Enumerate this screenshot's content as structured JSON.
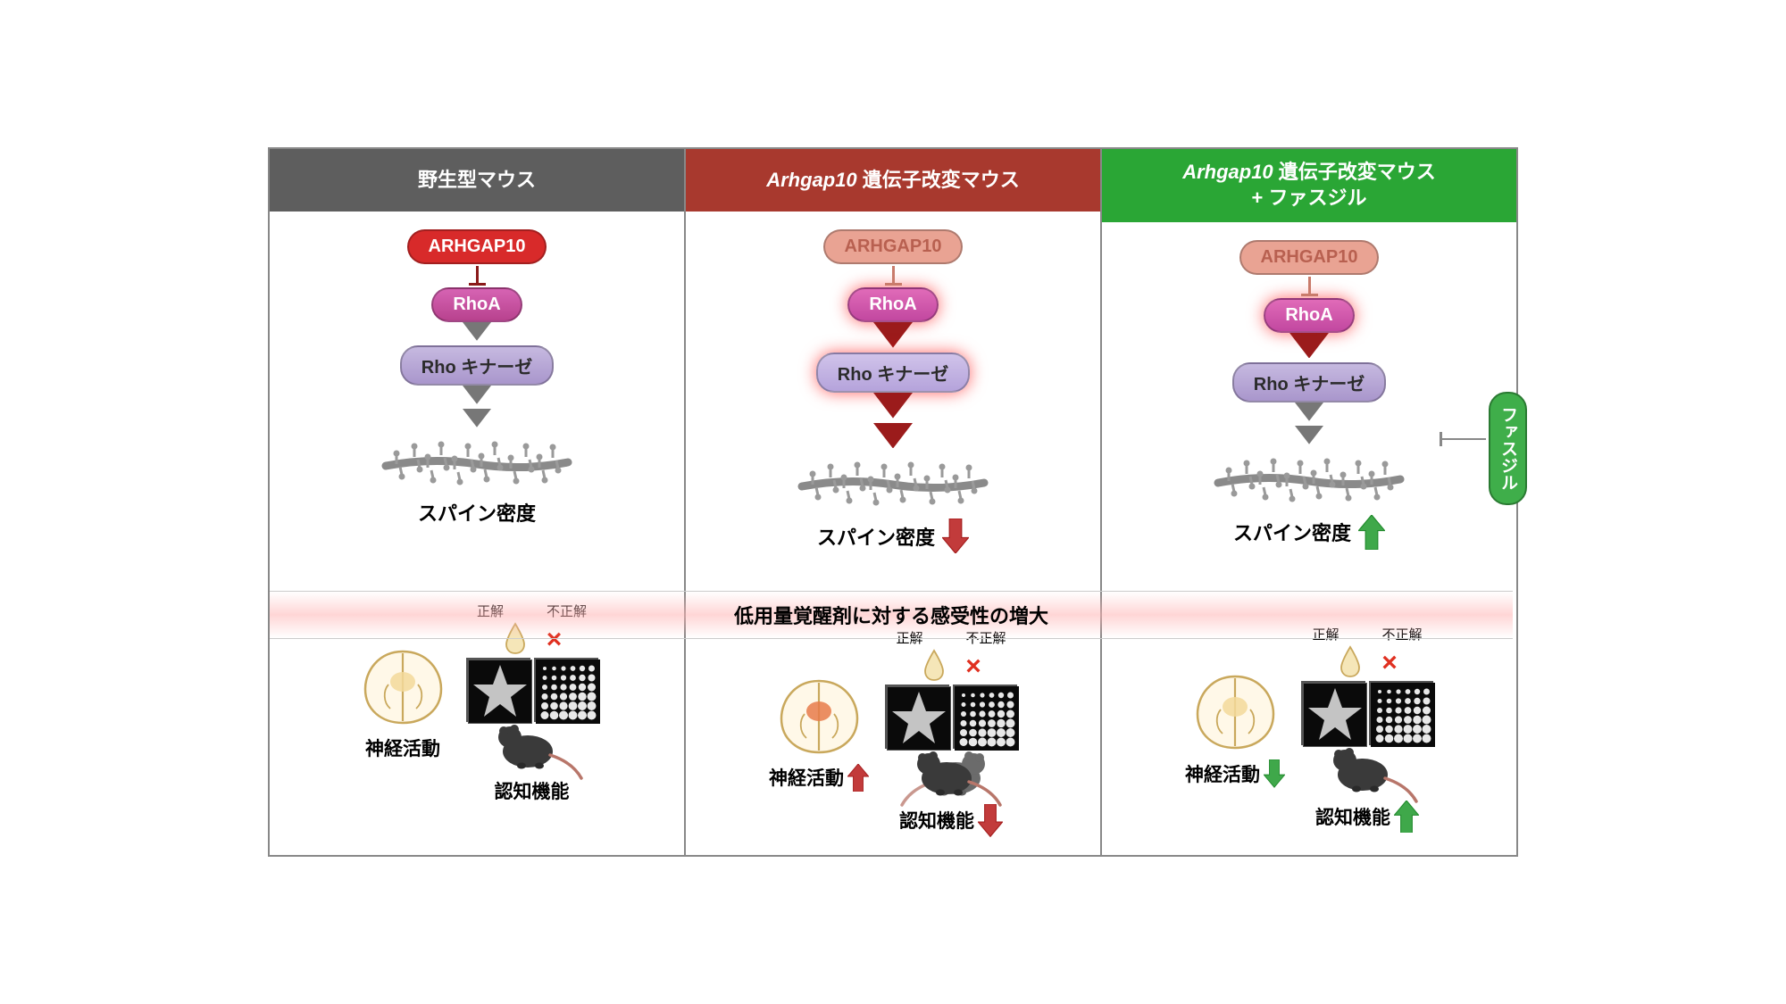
{
  "columns": [
    {
      "title_plain": "野生型マウス",
      "title_italic": "",
      "title_suffix": "",
      "header_bg": "#5e5e5e",
      "arhgap": {
        "text": "ARHGAP10",
        "bg": "#d82a2a",
        "color": "#ffffff",
        "faded": false
      },
      "inhibit_color": "#8a1a1a",
      "rhoa": {
        "text": "RhoA",
        "bg": "linear-gradient(#d663b3,#b8428e)",
        "color": "#ffffff",
        "glow": false
      },
      "arrow1": {
        "color": "#777777",
        "size": 16
      },
      "rhokinase": {
        "text": "Rho キナーゼ",
        "bg": "linear-gradient(#c6b9e0,#a996cc)",
        "color": "#2b2b2b",
        "glow": false
      },
      "arrow2": {
        "color": "#777777",
        "size": 16
      },
      "arrow3": {
        "color": "#777777",
        "size": 16
      },
      "spine_label": "スパイン密度",
      "spine_trend": null,
      "neural_label": "神経活動",
      "neural_trend": null,
      "cog_label": "認知機能",
      "cog_trend": null,
      "choice_correct": "正解",
      "choice_incorrect": "不正解",
      "brain_highlight": "#f3d99a"
    },
    {
      "title_plain": "",
      "title_italic": "Arhgap10",
      "title_suffix": " 遺伝子改変マウス",
      "header_bg": "#a8392e",
      "arhgap": {
        "text": "ARHGAP10",
        "bg": "#e9a393",
        "color": "#b86050",
        "faded": true
      },
      "inhibit_color": "#c97b6b",
      "rhoa": {
        "text": "RhoA",
        "bg": "linear-gradient(#e06bb8,#c248a0)",
        "color": "#ffffff",
        "glow": true
      },
      "arrow1": {
        "color": "#9b1b1b",
        "size": 22
      },
      "rhokinase": {
        "text": "Rho キナーゼ",
        "bg": "linear-gradient(#d0c3ea,#b5a3db)",
        "color": "#2b2b2b",
        "glow": true
      },
      "arrow2": {
        "color": "#9b1b1b",
        "size": 22
      },
      "arrow3": {
        "color": "#9b1b1b",
        "size": 22
      },
      "spine_label": "スパイン密度",
      "spine_trend": {
        "dir": "down",
        "color": "#c23b3b"
      },
      "neural_label": "神経活動",
      "neural_trend": {
        "dir": "up",
        "color": "#c23b3b"
      },
      "cog_label": "認知機能",
      "cog_trend": {
        "dir": "down",
        "color": "#c23b3b"
      },
      "choice_correct": "正解",
      "choice_incorrect": "不正解",
      "brain_highlight": "#e87b4a"
    },
    {
      "title_plain": "",
      "title_italic": "Arhgap10",
      "title_suffix": " 遺伝子改変マウス\n+ ファスジル",
      "header_bg": "#2aa635",
      "arhgap": {
        "text": "ARHGAP10",
        "bg": "#e9a393",
        "color": "#b86050",
        "faded": true
      },
      "inhibit_color": "#c97b6b",
      "rhoa": {
        "text": "RhoA",
        "bg": "linear-gradient(#e06bb8,#c248a0)",
        "color": "#ffffff",
        "glow": true
      },
      "arrow1": {
        "color": "#9b1b1b",
        "size": 22
      },
      "rhokinase": {
        "text": "Rho キナーゼ",
        "bg": "linear-gradient(#c6b9e0,#a996cc)",
        "color": "#2b2b2b",
        "glow": false
      },
      "arrow2": {
        "color": "#777777",
        "size": 16
      },
      "arrow3": {
        "color": "#777777",
        "size": 16
      },
      "spine_label": "スパイン密度",
      "spine_trend": {
        "dir": "up",
        "color": "#3fa84a"
      },
      "neural_label": "神経活動",
      "neural_trend": {
        "dir": "down",
        "color": "#3fa84a"
      },
      "cog_label": "認知機能",
      "cog_trend": {
        "dir": "up",
        "color": "#3fa84a"
      },
      "choice_correct": "正解",
      "choice_incorrect": "不正解",
      "brain_highlight": "#f3d99a",
      "fasudil_label": "ファスジル"
    }
  ],
  "band_text": "低用量覚醒剤に対する感受性の増大"
}
